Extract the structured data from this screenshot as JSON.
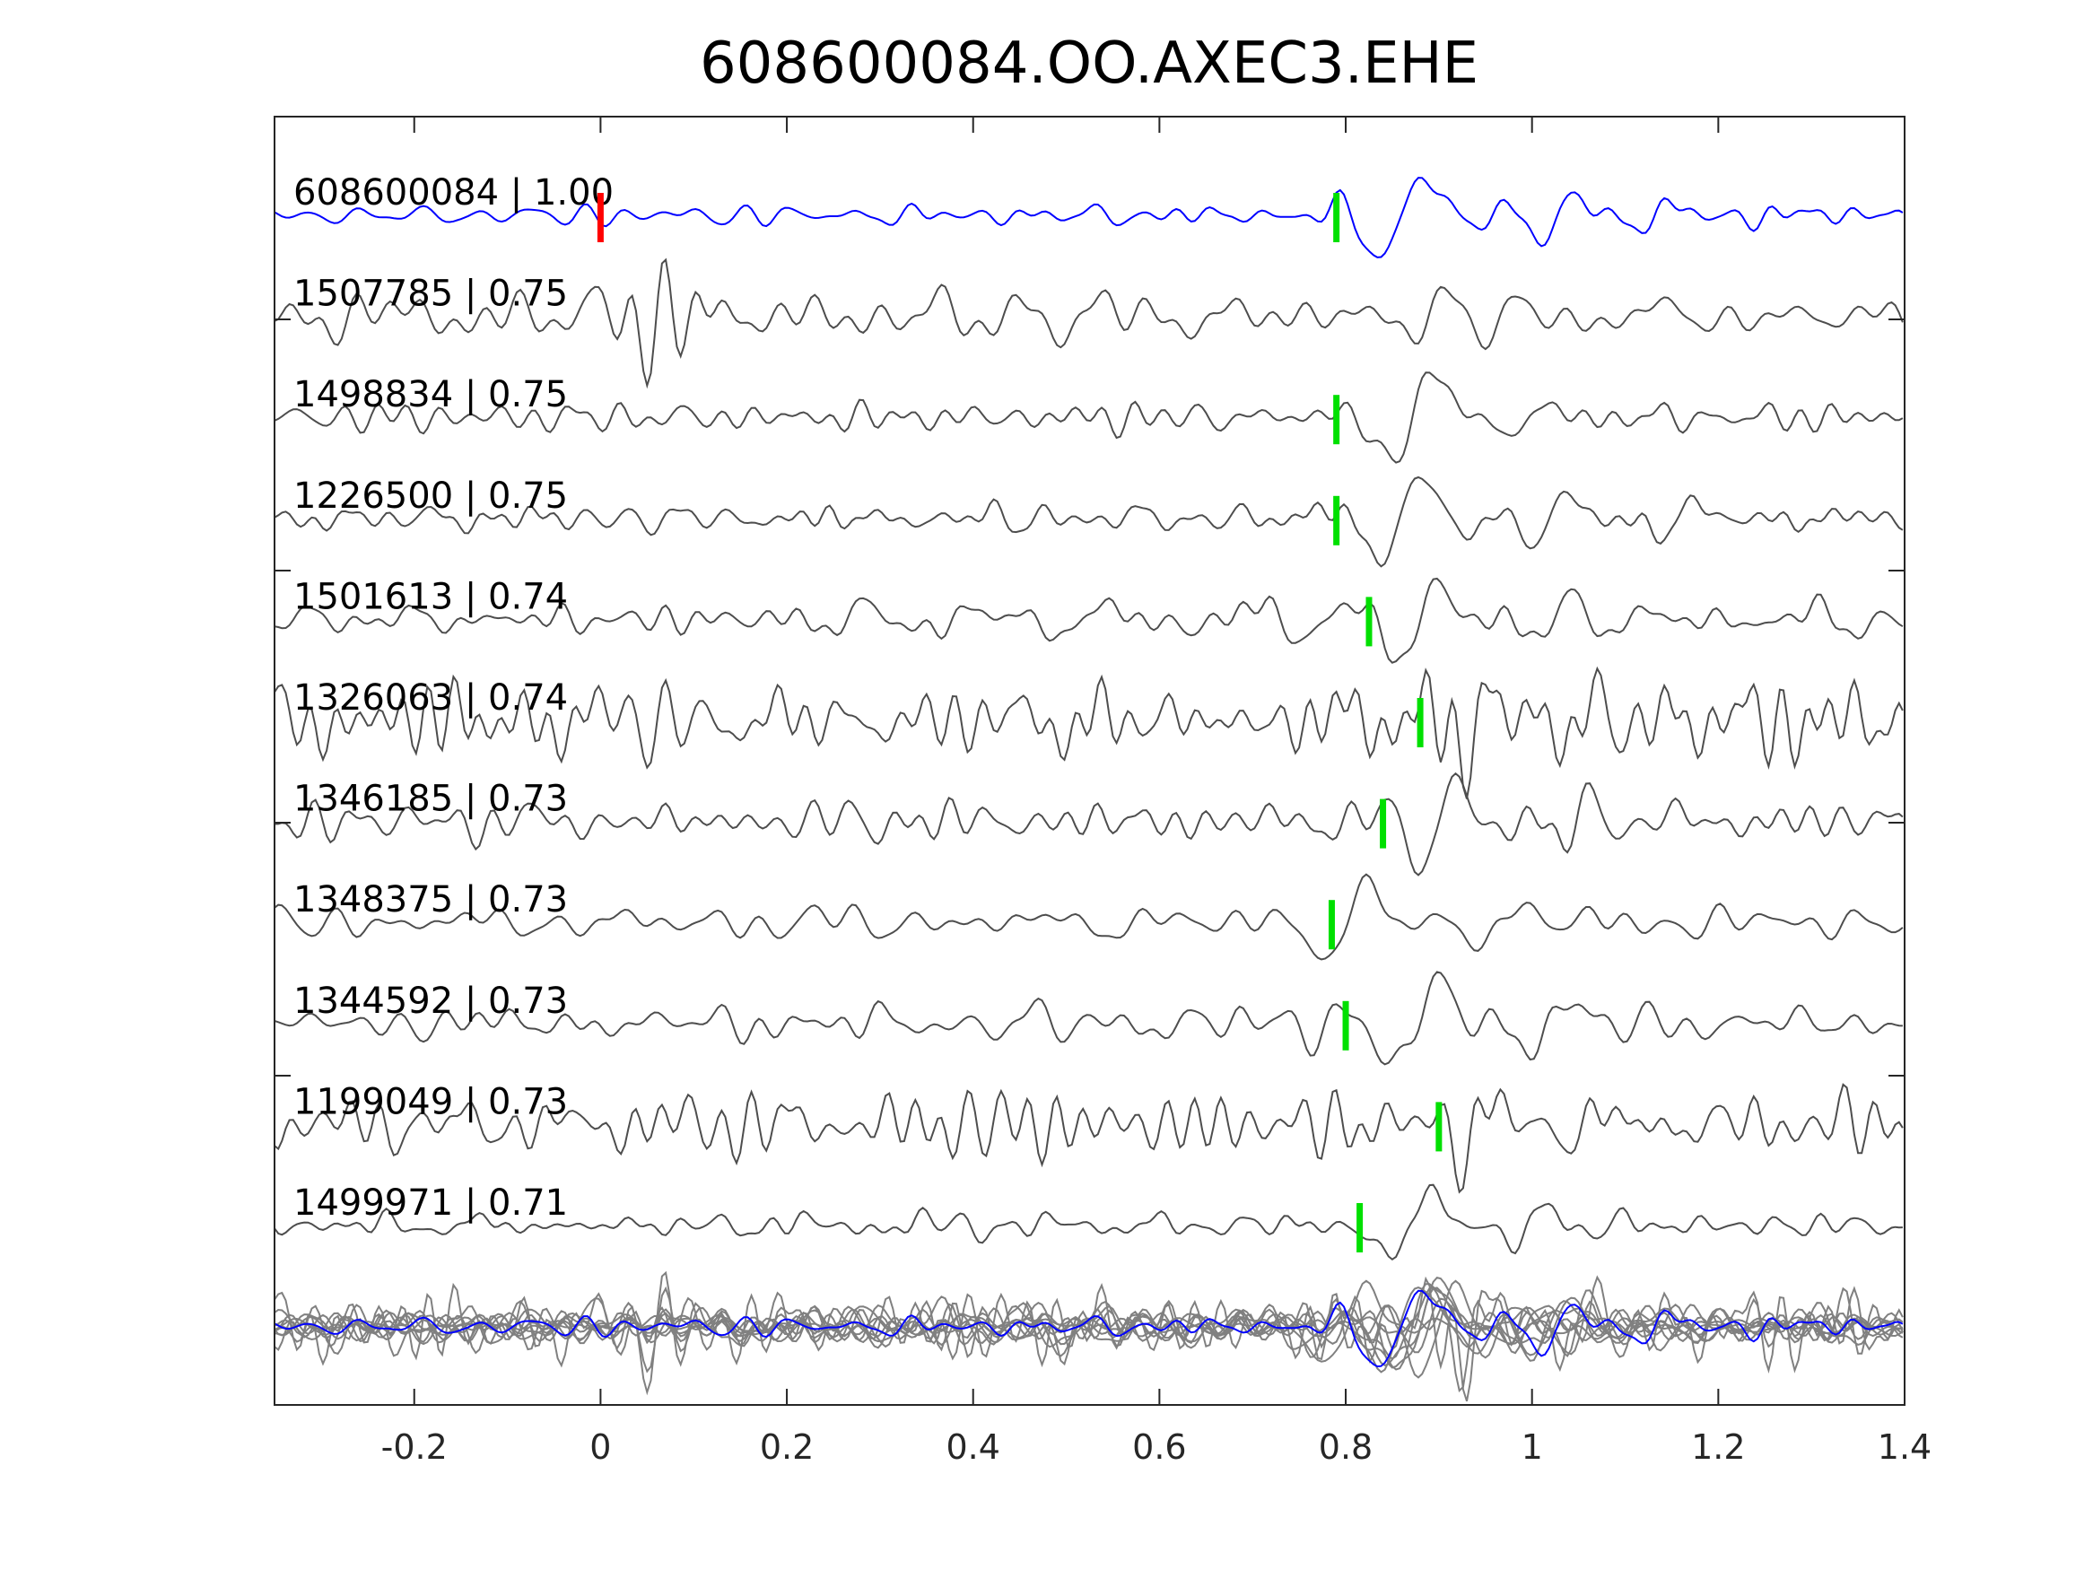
{
  "chart_data": {
    "type": "line",
    "title": "608600084.OO.AXEC3.EHE",
    "xlabel": "",
    "ylabel": "",
    "xlim": [
      -0.35,
      1.4
    ],
    "xticks": [
      "-0.2",
      "0",
      "0.2",
      "0.4",
      "0.6",
      "0.8",
      "1",
      "1.2",
      "1.4"
    ],
    "xtick_values": [
      -0.2,
      0,
      0.2,
      0.4,
      0.6,
      0.8,
      1.0,
      1.2,
      1.4
    ],
    "colors": {
      "template": "#0000ff",
      "trace": "#4d4d4d",
      "stack": "#808080",
      "pick": "#00e000",
      "origin": "#ff0000",
      "axis": "#262626"
    },
    "origin_pick": 0.0,
    "traces": [
      {
        "label": "608600084 | 1.00",
        "id": "608600084",
        "cc": 1.0,
        "pick": 0.79,
        "template": true,
        "seed": 11,
        "noise": 0.12,
        "bursts": [
          [
            0.86,
            1.0,
            0.11,
            0.05
          ],
          [
            1.03,
            0.45,
            0.09,
            0.04
          ],
          [
            1.13,
            0.4,
            0.09,
            0.03
          ],
          [
            1.26,
            0.2,
            0.1,
            0.05
          ]
        ]
      },
      {
        "label": "1507785 | 0.75",
        "id": "1507785",
        "cc": 0.75,
        "pick": null,
        "seed": 22,
        "noise": 0.3,
        "bursts": [
          [
            0.06,
            1.3,
            0.036,
            0.05
          ],
          [
            1.38,
            0.4,
            0.08,
            0.03
          ]
        ]
      },
      {
        "label": "1498834 | 0.75",
        "id": "1498834",
        "cc": 0.75,
        "pick": 0.79,
        "seed": 33,
        "noise": 0.14,
        "bursts": [
          [
            0.87,
            1.0,
            0.12,
            0.06
          ],
          [
            1.0,
            0.3,
            0.08,
            0.04
          ]
        ]
      },
      {
        "label": "1226500 | 0.75",
        "id": "1226500",
        "cc": 0.75,
        "pick": 0.79,
        "seed": 44,
        "noise": 0.12,
        "bursts": [
          [
            0.86,
            0.95,
            0.1,
            0.06
          ],
          [
            1.02,
            0.55,
            0.09,
            0.04
          ],
          [
            1.16,
            0.3,
            0.1,
            0.05
          ]
        ]
      },
      {
        "label": "1501613 | 0.74",
        "id": "1501613",
        "cc": 0.74,
        "pick": 0.825,
        "seed": 55,
        "noise": 0.2,
        "bursts": [
          [
            0.88,
            1.0,
            0.1,
            0.05
          ],
          [
            1.02,
            0.45,
            0.09,
            0.05
          ]
        ]
      },
      {
        "label": "1326063 | 0.74",
        "id": "1326063",
        "cc": 0.74,
        "pick": 0.88,
        "seed": 66,
        "noise": 0.38,
        "bursts": [
          [
            0.06,
            0.7,
            0.04,
            0.05
          ],
          [
            0.94,
            0.8,
            0.06,
            0.03
          ],
          [
            1.05,
            0.7,
            0.06,
            0.03
          ]
        ]
      },
      {
        "label": "1346185 | 0.73",
        "id": "1346185",
        "cc": 0.73,
        "pick": 0.84,
        "seed": 77,
        "noise": 0.22,
        "bursts": [
          [
            0.9,
            1.0,
            0.09,
            0.05
          ],
          [
            1.05,
            0.55,
            0.08,
            0.03
          ]
        ]
      },
      {
        "label": "1348375 | 0.73",
        "id": "1348375",
        "cc": 0.73,
        "pick": 0.785,
        "seed": 88,
        "noise": 0.16,
        "bursts": [
          [
            0.8,
            0.9,
            0.1,
            0.04
          ],
          [
            0.97,
            0.5,
            0.09,
            0.04
          ]
        ]
      },
      {
        "label": "1344592 | 0.73",
        "id": "1344592",
        "cc": 0.73,
        "pick": 0.8,
        "seed": 99,
        "noise": 0.18,
        "bursts": [
          [
            0.88,
            0.95,
            0.12,
            0.05
          ],
          [
            1.02,
            0.55,
            0.09,
            0.04
          ]
        ]
      },
      {
        "label": "1199049 | 0.73",
        "id": "1199049",
        "cc": 0.73,
        "pick": 0.9,
        "seed": 111,
        "noise": 0.3,
        "bursts": [
          [
            0.94,
            0.9,
            0.06,
            0.03
          ],
          [
            1.05,
            0.55,
            0.06,
            0.03
          ]
        ]
      },
      {
        "label": "1499971 | 0.71",
        "id": "1499971",
        "cc": 0.71,
        "pick": 0.815,
        "seed": 122,
        "noise": 0.14,
        "bursts": [
          [
            0.87,
            1.0,
            0.11,
            0.05
          ],
          [
            1.0,
            0.45,
            0.09,
            0.04
          ]
        ]
      }
    ]
  }
}
